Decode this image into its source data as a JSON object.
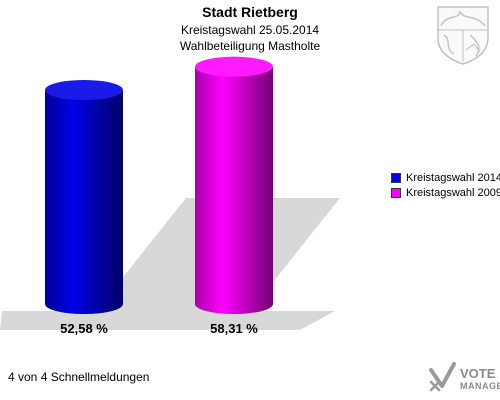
{
  "chart_data": {
    "type": "bar",
    "title": "Stadt Rietberg",
    "subtitle": "Kreistagswahl 25.05.2014",
    "subtitle2": "Wahlbeteiligung Mastholte",
    "categories": [
      "Kreistagswahl 2014",
      "Kreistagswahl 2009"
    ],
    "values": [
      52.58,
      58.31
    ],
    "value_labels": [
      "52,58 %",
      "58,31 %"
    ],
    "colors": [
      "#0000e6",
      "#ff00ff"
    ],
    "ylim": [
      0,
      60
    ],
    "grid": false,
    "legend_position": "right",
    "series": [
      {
        "name": "Kreistagswahl 2014",
        "value": 52.58,
        "color": "#0000e6"
      },
      {
        "name": "Kreistagswahl 2009",
        "value": 58.31,
        "color": "#ff00ff"
      }
    ]
  },
  "footer": "4 von 4 Schnellmeldungen",
  "logo": {
    "line1": "VOTE",
    "line2": "MANAGER"
  },
  "icons": {
    "crest": "nrw-coat-of-arms-icon",
    "logo": "vote-manager-logo-icon"
  }
}
